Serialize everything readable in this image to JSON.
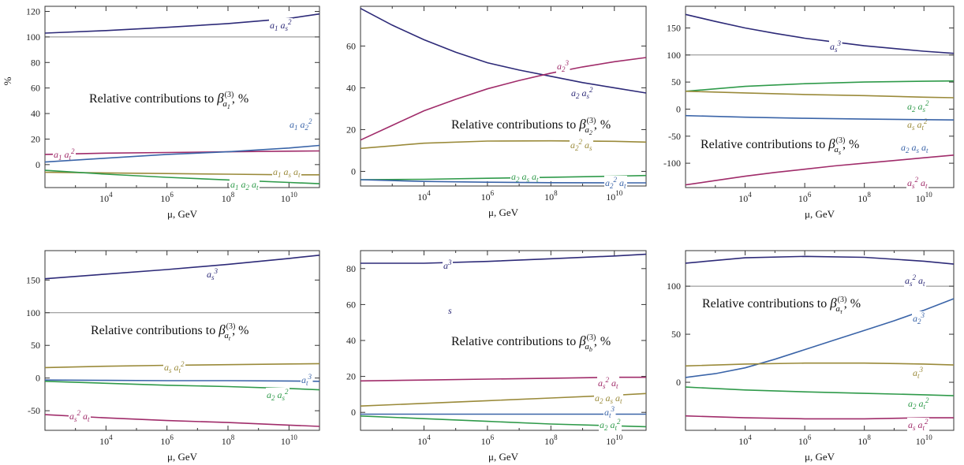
{
  "colors": {
    "navy": "#2d2a78",
    "blue": "#3a64a8",
    "magenta": "#a02c6a",
    "olive": "#9a8a3a",
    "green": "#2f9a4a",
    "refline": "#888888"
  },
  "chart_data": [
    {
      "type": "line",
      "title": "Relative contributions to β_{a_1}^{(3)}, %",
      "title_parts": {
        "pre": "Relative contributions to ",
        "sym": "β",
        "sub": "a",
        "subsub": "1",
        "sup": "(3)",
        "post": ", %"
      },
      "xlabel": "μ, GeV",
      "ylabel": "%",
      "x_scale": "log",
      "xlim": [
        100,
        100000000000.0
      ],
      "ylim": [
        -18,
        124
      ],
      "xticks": [
        10000,
        1000000,
        100000000,
        10000000000
      ],
      "xtick_labels": [
        "10^4",
        "10^6",
        "10^8",
        "10^10"
      ],
      "yticks": [
        0,
        20,
        40,
        60,
        80,
        100,
        120
      ],
      "ref_line": 100,
      "series": [
        {
          "name": "a_1 a_s^2",
          "color": "navy",
          "x": [
            100,
            10000.0,
            1000000.0,
            100000000.0,
            10000000000.0,
            100000000000.0
          ],
          "y": [
            103,
            105,
            107.5,
            110.5,
            114.5,
            118
          ]
        },
        {
          "name": "a_1 a_t^2",
          "color": "magenta",
          "x": [
            100,
            10000.0,
            1000000.0,
            100000000.0,
            10000000000.0,
            100000000000.0
          ],
          "y": [
            8,
            9,
            9.5,
            10,
            10.5,
            10.7
          ]
        },
        {
          "name": "a_1 a_2^2",
          "color": "blue",
          "x": [
            100,
            10000.0,
            1000000.0,
            100000000.0,
            10000000000.0,
            100000000000.0
          ],
          "y": [
            2,
            5,
            8,
            10,
            13,
            15
          ]
        },
        {
          "name": "a_1 a_s a_t",
          "color": "olive",
          "x": [
            100,
            10000.0,
            1000000.0,
            100000000.0,
            10000000000.0,
            100000000000.0
          ],
          "y": [
            -6,
            -6.5,
            -7,
            -7.5,
            -8,
            -8
          ]
        },
        {
          "name": "a_1 a_2 a_t",
          "color": "green",
          "x": [
            100,
            10000.0,
            1000000.0,
            100000000.0,
            10000000000.0,
            100000000000.0
          ],
          "y": [
            -4.5,
            -7.5,
            -10,
            -12,
            -14,
            -15
          ]
        }
      ]
    },
    {
      "type": "line",
      "title": "Relative contributions to β_{a_2}^{(3)}, %",
      "title_parts": {
        "pre": "Relative contributions to ",
        "sym": "β",
        "sub": "a",
        "subsub": "2",
        "sup": "(3)",
        "post": ", %"
      },
      "xlabel": "μ, GeV",
      "ylabel": "",
      "x_scale": "log",
      "xlim": [
        100,
        100000000000.0
      ],
      "ylim": [
        -7,
        79
      ],
      "xticks": [
        10000,
        1000000,
        100000000,
        10000000000
      ],
      "xtick_labels": [
        "10^4",
        "10^6",
        "10^8",
        "10^10"
      ],
      "yticks": [
        0,
        20,
        40,
        60
      ],
      "ref_line": null,
      "series": [
        {
          "name": "a_2 a_s^2",
          "color": "navy",
          "x": [
            100,
            1000.0,
            10000.0,
            100000.0,
            1000000.0,
            10000000.0,
            100000000.0,
            1000000000.0,
            10000000000.0,
            100000000000.0
          ],
          "y": [
            78,
            70,
            63,
            57,
            52,
            48.5,
            45.5,
            42.5,
            40,
            37.5
          ]
        },
        {
          "name": "a_2^3",
          "color": "magenta",
          "x": [
            100,
            1000.0,
            10000.0,
            100000.0,
            1000000.0,
            10000000.0,
            100000000.0,
            1000000000.0,
            10000000000.0,
            100000000000.0
          ],
          "y": [
            15,
            22,
            29,
            34.5,
            39.5,
            43.5,
            47,
            50,
            52.5,
            54.5
          ]
        },
        {
          "name": "a_2^2 a_s",
          "color": "olive",
          "x": [
            100,
            10000.0,
            1000000.0,
            100000000.0,
            10000000000.0,
            100000000000.0
          ],
          "y": [
            11,
            13.5,
            14.5,
            14.6,
            14.4,
            14
          ]
        },
        {
          "name": "a_2 a_s a_t",
          "color": "green",
          "x": [
            100,
            10000.0,
            1000000.0,
            100000000.0,
            10000000000.0,
            100000000000.0
          ],
          "y": [
            -4,
            -3.8,
            -3.3,
            -2.8,
            -2.3,
            -2
          ]
        },
        {
          "name": "a_2^2 a_t",
          "color": "blue",
          "x": [
            100,
            10000.0,
            1000000.0,
            100000000.0,
            10000000000.0,
            100000000000.0
          ],
          "y": [
            -4,
            -4.8,
            -5.2,
            -5.4,
            -5.5,
            -5.5
          ]
        }
      ]
    },
    {
      "type": "line",
      "title": "Relative contributions to β_{a_s}^{(3)}, %",
      "title_parts": {
        "pre": "Relative contributions to ",
        "sym": "β",
        "sub": "a",
        "subsub": "s",
        "sup": "(3)",
        "post": ", %"
      },
      "xlabel": "μ, GeV",
      "ylabel": "",
      "x_scale": "log",
      "xlim": [
        100,
        100000000000.0
      ],
      "ylim": [
        -145,
        190
      ],
      "xticks": [
        10000,
        1000000,
        100000000,
        10000000000
      ],
      "xtick_labels": [
        "10^4",
        "10^6",
        "10^8",
        "10^10"
      ],
      "yticks": [
        -100,
        -50,
        0,
        50,
        100,
        150
      ],
      "ref_line": 100,
      "series": [
        {
          "name": "a_s^3",
          "color": "navy",
          "x": [
            100,
            1000.0,
            10000.0,
            100000.0,
            1000000.0,
            10000000.0,
            100000000.0,
            1000000000.0,
            10000000000.0,
            100000000000.0
          ],
          "y": [
            175,
            162,
            150,
            140,
            131,
            124,
            117,
            112,
            107,
            103
          ]
        },
        {
          "name": "a_2 a_s^2",
          "color": "green",
          "x": [
            100,
            10000.0,
            1000000.0,
            100000000.0,
            10000000000.0,
            100000000000.0
          ],
          "y": [
            33,
            42,
            47,
            50,
            51.5,
            52
          ]
        },
        {
          "name": "a_s a_t^2",
          "color": "olive",
          "x": [
            100,
            10000.0,
            1000000.0,
            100000000.0,
            10000000000.0,
            100000000000.0
          ],
          "y": [
            33,
            30,
            27,
            25,
            22,
            21
          ]
        },
        {
          "name": "a_2 a_s a_t",
          "color": "blue",
          "x": [
            100,
            10000.0,
            1000000.0,
            100000000.0,
            10000000000.0,
            100000000000.0
          ],
          "y": [
            -12,
            -15,
            -17,
            -18.5,
            -19.5,
            -20
          ]
        },
        {
          "name": "a_s^2 a_t",
          "color": "magenta",
          "x": [
            100,
            1000.0,
            10000.0,
            100000.0,
            1000000.0,
            10000000.0,
            100000000.0,
            1000000000.0,
            10000000000.0,
            100000000000.0
          ],
          "y": [
            -140,
            -132,
            -124,
            -117,
            -111,
            -105,
            -100,
            -95,
            -90,
            -85
          ]
        }
      ]
    },
    {
      "type": "line",
      "title": "Relative contributions to β_{a_t}^{(3)}, %",
      "title_parts": {
        "pre": "Relative contributions to ",
        "sym": "β",
        "sub": "a",
        "subsub": "t",
        "sup": "(3)",
        "post": ", %"
      },
      "xlabel": "μ, GeV",
      "ylabel": "",
      "x_scale": "log",
      "xlim": [
        100,
        100000000000.0
      ],
      "ylim": [
        -80,
        195
      ],
      "xticks": [
        10000,
        1000000,
        100000000,
        10000000000
      ],
      "xtick_labels": [
        "10^4",
        "10^6",
        "10^8",
        "10^10"
      ],
      "yticks": [
        -50,
        0,
        50,
        100,
        150
      ],
      "ref_line": 100,
      "series": [
        {
          "name": "a_s^3",
          "color": "navy",
          "x": [
            100,
            10000.0,
            1000000.0,
            100000000.0,
            10000000000.0,
            100000000000.0
          ],
          "y": [
            152,
            159,
            166,
            174,
            183,
            188
          ]
        },
        {
          "name": "a_s a_t^2",
          "color": "olive",
          "x": [
            100,
            10000.0,
            1000000.0,
            100000000.0,
            10000000000.0,
            100000000000.0
          ],
          "y": [
            16,
            18,
            19.5,
            20.5,
            21.5,
            22
          ]
        },
        {
          "name": "a_t^3",
          "color": "blue",
          "x": [
            100,
            10000.0,
            1000000.0,
            100000000.0,
            10000000000.0,
            100000000000.0
          ],
          "y": [
            -3,
            -3.5,
            -4,
            -4,
            -4.5,
            -5
          ]
        },
        {
          "name": "a_2 a_s^2",
          "color": "green",
          "x": [
            100,
            10000.0,
            1000000.0,
            100000000.0,
            10000000000.0,
            100000000000.0
          ],
          "y": [
            -5,
            -8,
            -11,
            -13,
            -16,
            -18
          ]
        },
        {
          "name": "a_s^2 a_t",
          "color": "magenta",
          "x": [
            100,
            10000.0,
            1000000.0,
            100000000.0,
            10000000000.0,
            100000000000.0
          ],
          "y": [
            -56,
            -61,
            -65,
            -68,
            -72,
            -74
          ]
        }
      ]
    },
    {
      "type": "line",
      "title": "Relative contributions to β_{a_b}^{(3)}, %",
      "title_parts": {
        "pre": "Relative contributions to ",
        "sym": "β",
        "sub": "a",
        "subsub": "b",
        "sup": "(3)",
        "post": ", %"
      },
      "xlabel": "μ, GeV",
      "ylabel": "",
      "x_scale": "log",
      "xlim": [
        100,
        100000000000.0
      ],
      "ylim": [
        -10,
        90
      ],
      "xticks": [
        10000,
        1000000,
        100000000,
        10000000000
      ],
      "xtick_labels": [
        "10^4",
        "10^6",
        "10^8",
        "10^10"
      ],
      "yticks": [
        0,
        20,
        40,
        60,
        80
      ],
      "ref_line": null,
      "stray_text": "s",
      "series": [
        {
          "name": "a^3",
          "color": "navy",
          "x": [
            100,
            10000.0,
            1000000.0,
            100000000.0,
            10000000000.0,
            100000000000.0
          ],
          "y": [
            83,
            83,
            84,
            85.5,
            87,
            88
          ]
        },
        {
          "name": "a_s^2 a_t",
          "color": "magenta",
          "x": [
            100,
            10000.0,
            1000000.0,
            100000000.0,
            10000000000.0,
            100000000000.0
          ],
          "y": [
            17.5,
            18,
            18.5,
            19,
            19.5,
            19.5
          ]
        },
        {
          "name": "a_2 a_s a_t",
          "color": "olive",
          "x": [
            100,
            10000.0,
            1000000.0,
            100000000.0,
            10000000000.0,
            100000000000.0
          ],
          "y": [
            3.5,
            5,
            6.5,
            8,
            9.5,
            10.5
          ]
        },
        {
          "name": "a_t^3",
          "color": "blue",
          "x": [
            100,
            10000.0,
            1000000.0,
            100000000.0,
            10000000000.0,
            100000000000.0
          ],
          "y": [
            -1,
            -1,
            -1,
            -1,
            -1,
            -1
          ]
        },
        {
          "name": "a_2 a_t^2",
          "color": "green",
          "x": [
            100,
            10000.0,
            1000000.0,
            100000000.0,
            10000000000.0,
            100000000000.0
          ],
          "y": [
            -2,
            -3.5,
            -5,
            -6.5,
            -7.5,
            -8
          ]
        }
      ]
    },
    {
      "type": "line",
      "title": "Relative contributions to β_{a_τ}^{(3)}, %",
      "title_parts": {
        "pre": "Relative contributions to ",
        "sym": "β",
        "sub": "a",
        "subsub": "τ",
        "sup": "(3)",
        "post": ", %"
      },
      "xlabel": "μ, GeV",
      "ylabel": "",
      "x_scale": "log",
      "xlim": [
        100,
        100000000000.0
      ],
      "ylim": [
        -50,
        137
      ],
      "xticks": [
        10000,
        1000000,
        100000000,
        10000000000
      ],
      "xtick_labels": [
        "10^4",
        "10^6",
        "10^8",
        "10^10"
      ],
      "yticks": [
        0,
        50,
        100
      ],
      "ref_line": 100,
      "series": [
        {
          "name": "a_s^2 a_t",
          "color": "navy",
          "x": [
            100,
            10000.0,
            1000000.0,
            100000000.0,
            10000000000.0,
            100000000000.0
          ],
          "y": [
            124,
            129.5,
            131,
            130,
            126,
            123
          ]
        },
        {
          "name": "a_2^3",
          "color": "blue",
          "x": [
            100,
            1000.0,
            10000.0,
            100000.0,
            1000000.0,
            10000000.0,
            100000000.0,
            1000000000.0,
            10000000000.0,
            100000000000.0
          ],
          "y": [
            5,
            9,
            15,
            24,
            34,
            44,
            54,
            64,
            75,
            87
          ]
        },
        {
          "name": "a_t^3",
          "color": "olive",
          "x": [
            100,
            10000.0,
            1000000.0,
            100000000.0,
            10000000000.0,
            100000000000.0
          ],
          "y": [
            17,
            19,
            20,
            20,
            19,
            18
          ]
        },
        {
          "name": "a_2 a_t^2",
          "color": "green",
          "x": [
            100,
            10000.0,
            1000000.0,
            100000000.0,
            10000000000.0,
            100000000000.0
          ],
          "y": [
            -5,
            -8,
            -10,
            -11.5,
            -13,
            -14
          ]
        },
        {
          "name": "a_s a_t^2",
          "color": "magenta",
          "x": [
            100,
            10000.0,
            1000000.0,
            100000000.0,
            10000000000.0,
            100000000000.0
          ],
          "y": [
            -35,
            -37,
            -38,
            -38,
            -37,
            -37
          ]
        }
      ]
    }
  ]
}
